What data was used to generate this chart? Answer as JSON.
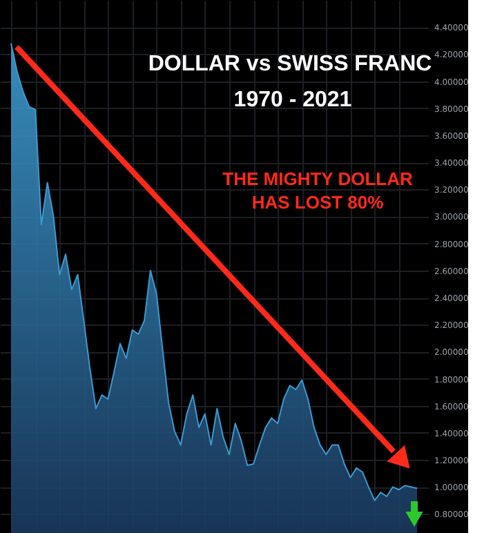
{
  "chart_data": {
    "type": "area",
    "title": "DOLLAR vs SWISS FRANC",
    "subtitle": "1970 - 2021",
    "annotations": [
      "THE MIGHTY DOLLAR HAS LOST 80%"
    ],
    "categories": [
      null,
      null,
      null,
      null,
      null,
      null,
      null,
      null,
      null,
      null,
      null,
      null,
      null,
      null,
      null,
      null,
      null,
      null,
      null,
      null,
      null,
      null,
      null,
      null,
      null,
      null,
      null,
      null,
      null,
      null,
      null,
      null,
      null,
      null,
      null,
      null,
      null,
      null,
      null,
      null,
      null,
      null,
      null,
      null,
      null,
      null,
      null,
      null,
      null,
      null,
      null,
      null,
      null,
      null,
      null,
      null,
      null,
      null,
      null,
      null,
      null,
      null,
      null,
      null,
      null,
      null,
      null,
      null
    ],
    "series": [
      {
        "color": "#3c9bd0",
        "values": [
          4.28,
          4.07,
          3.92,
          3.81,
          3.79,
          2.94,
          3.25,
          3.0,
          2.57,
          2.72,
          2.46,
          2.57,
          2.23,
          1.88,
          1.58,
          1.68,
          1.65,
          1.85,
          2.06,
          1.95,
          2.16,
          2.13,
          2.23,
          2.6,
          2.43,
          2.02,
          1.62,
          1.41,
          1.31,
          1.54,
          1.68,
          1.44,
          1.54,
          1.31,
          1.58,
          1.37,
          1.24,
          1.47,
          1.34,
          1.16,
          1.17,
          1.31,
          1.44,
          1.51,
          1.47,
          1.65,
          1.75,
          1.72,
          1.79,
          1.65,
          1.44,
          1.31,
          1.24,
          1.31,
          1.31,
          1.17,
          1.07,
          1.14,
          1.11,
          1.0,
          0.9,
          0.96,
          0.93,
          1.0,
          0.98,
          1.01,
          1.0,
          0.99
        ]
      }
    ],
    "ylim": [
      0.68,
      4.6
    ],
    "yticks": [
      {
        "value": 0.8,
        "label": "0.80000"
      },
      {
        "value": 1.0,
        "label": "1.00000"
      },
      {
        "value": 1.2,
        "label": "1.20000"
      },
      {
        "value": 1.4,
        "label": "1.40000"
      },
      {
        "value": 1.6,
        "label": "1.60000"
      },
      {
        "value": 1.8,
        "label": "1.80000"
      },
      {
        "value": 2.0,
        "label": "2.00000"
      },
      {
        "value": 2.2,
        "label": "2.20000"
      },
      {
        "value": 2.4,
        "label": "2.40000"
      },
      {
        "value": 2.6,
        "label": "2.60000"
      },
      {
        "value": 2.8,
        "label": "2.80000"
      },
      {
        "value": 3.0,
        "label": "3.00000"
      },
      {
        "value": 3.2,
        "label": "3.20000"
      },
      {
        "value": 3.4,
        "label": "3.40000"
      },
      {
        "value": 3.6,
        "label": "3.60000"
      },
      {
        "value": 3.8,
        "label": "3.80000"
      },
      {
        "value": 4.0,
        "label": "4.00000"
      },
      {
        "value": 4.2,
        "label": "4.20000"
      },
      {
        "value": 4.4,
        "label": "4.40000"
      }
    ],
    "tick_labels": "y",
    "grid": true
  }
}
